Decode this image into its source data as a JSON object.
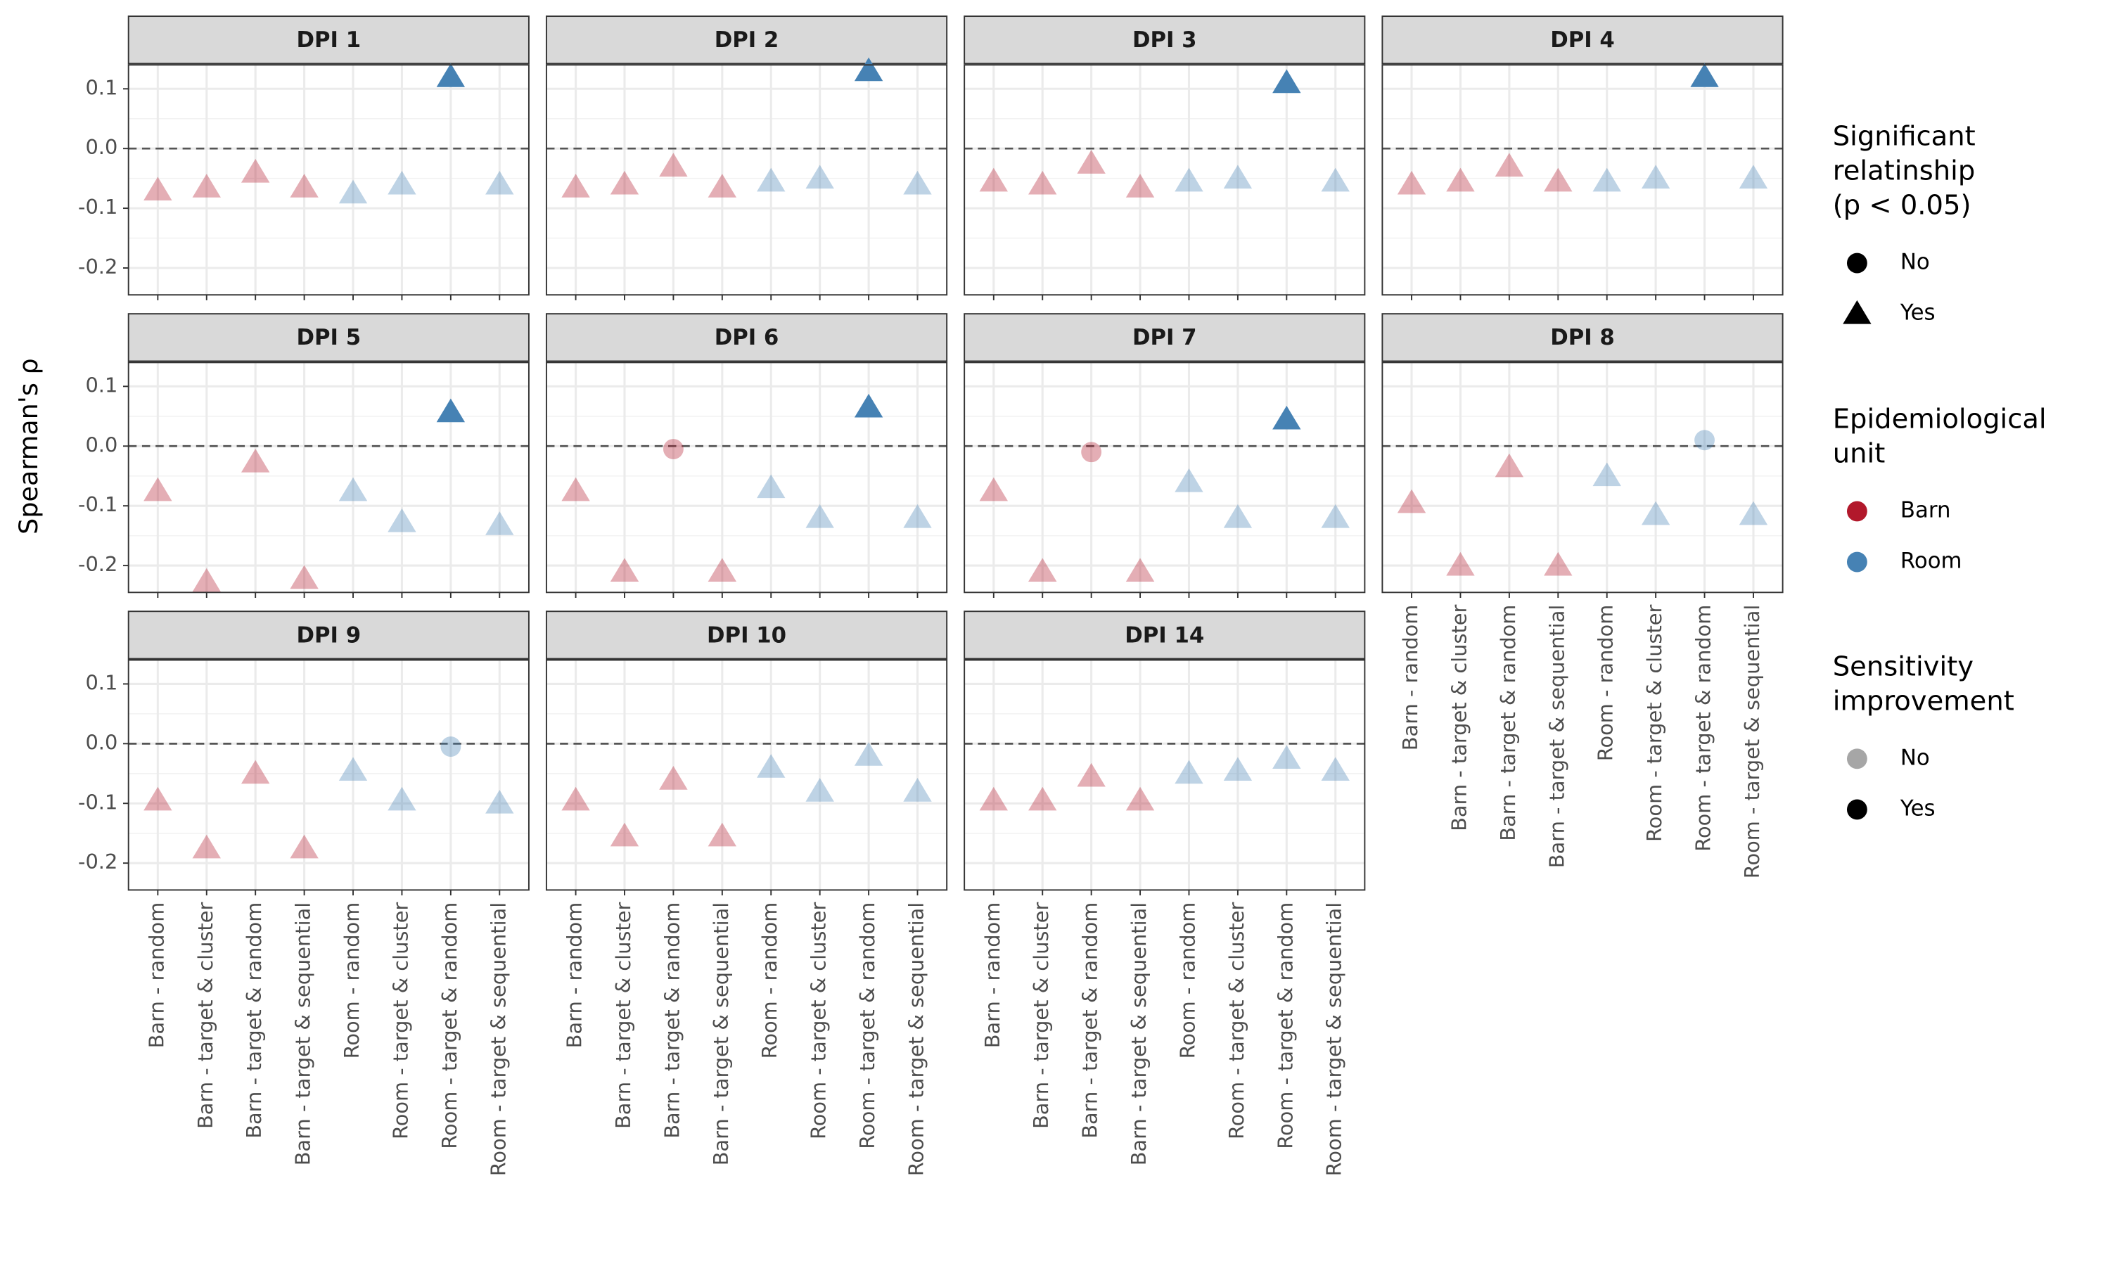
{
  "chart_data": {
    "type": "scatter",
    "y_label": "Spearman's ρ",
    "categories": [
      "Barn - random",
      "Barn - target & cluster",
      "Barn - target & random",
      "Barn - target & sequential",
      "Room - random",
      "Room - target & cluster",
      "Room - target & random",
      "Room - target & sequential"
    ],
    "units": [
      "Barn",
      "Barn",
      "Barn",
      "Barn",
      "Room",
      "Room",
      "Room",
      "Room"
    ],
    "ylim": [
      -0.245,
      0.14
    ],
    "yticks": [
      0.1,
      {
        "value": 0,
        "label": "0.0"
      },
      -0.1,
      -0.2
    ],
    "minor_yticks": [
      0.05,
      -0.05,
      -0.15
    ],
    "reference_line": 0,
    "grid": true,
    "shape_map": {
      "No": "circle",
      "Yes": "triangle"
    },
    "color_map": {
      "Barn": "#b2182b",
      "Room": "#4682b4"
    },
    "alpha_map": {
      "No": 0.35,
      "Yes": 1
    },
    "facets": [
      {
        "title": "DPI 1",
        "values": [
          -0.07,
          -0.065,
          -0.04,
          -0.065,
          -0.075,
          -0.06,
          0.12,
          -0.06
        ],
        "significant": [
          "Yes",
          "Yes",
          "Yes",
          "Yes",
          "Yes",
          "Yes",
          "Yes",
          "Yes"
        ],
        "improvement": [
          "No",
          "No",
          "No",
          "No",
          "No",
          "No",
          "Yes",
          "No"
        ]
      },
      {
        "title": "DPI 2",
        "values": [
          -0.065,
          -0.06,
          -0.03,
          -0.065,
          -0.055,
          -0.05,
          0.13,
          -0.06
        ],
        "significant": [
          "Yes",
          "Yes",
          "Yes",
          "Yes",
          "Yes",
          "Yes",
          "Yes",
          "Yes"
        ],
        "improvement": [
          "No",
          "No",
          "No",
          "No",
          "No",
          "No",
          "Yes",
          "No"
        ]
      },
      {
        "title": "DPI 3",
        "values": [
          -0.055,
          -0.06,
          -0.025,
          -0.065,
          -0.055,
          -0.05,
          0.11,
          -0.055
        ],
        "significant": [
          "Yes",
          "Yes",
          "Yes",
          "Yes",
          "Yes",
          "Yes",
          "Yes",
          "Yes"
        ],
        "improvement": [
          "No",
          "No",
          "No",
          "No",
          "No",
          "No",
          "Yes",
          "No"
        ]
      },
      {
        "title": "DPI 4",
        "values": [
          -0.06,
          -0.055,
          -0.03,
          -0.055,
          -0.055,
          -0.05,
          0.12,
          -0.05
        ],
        "significant": [
          "Yes",
          "Yes",
          "Yes",
          "Yes",
          "Yes",
          "Yes",
          "Yes",
          "Yes"
        ],
        "improvement": [
          "No",
          "No",
          "No",
          "No",
          "No",
          "No",
          "Yes",
          "No"
        ]
      },
      {
        "title": "DPI 5",
        "values": [
          -0.075,
          -0.227,
          -0.027,
          -0.222,
          -0.075,
          -0.127,
          0.057,
          -0.132
        ],
        "significant": [
          "Yes",
          "Yes",
          "Yes",
          "Yes",
          "Yes",
          "Yes",
          "Yes",
          "Yes"
        ],
        "improvement": [
          "No",
          "No",
          "No",
          "No",
          "No",
          "No",
          "Yes",
          "No"
        ]
      },
      {
        "title": "DPI 6",
        "values": [
          -0.075,
          -0.21,
          -0.005,
          -0.21,
          -0.07,
          -0.12,
          0.065,
          -0.12
        ],
        "significant": [
          "Yes",
          "Yes",
          "No",
          "Yes",
          "Yes",
          "Yes",
          "Yes",
          "Yes"
        ],
        "improvement": [
          "No",
          "No",
          "No",
          "No",
          "No",
          "No",
          "Yes",
          "No"
        ]
      },
      {
        "title": "DPI 7",
        "values": [
          -0.075,
          -0.21,
          -0.01,
          -0.21,
          -0.06,
          -0.12,
          0.045,
          -0.12
        ],
        "significant": [
          "Yes",
          "Yes",
          "No",
          "Yes",
          "Yes",
          "Yes",
          "Yes",
          "Yes"
        ],
        "improvement": [
          "No",
          "No",
          "No",
          "No",
          "No",
          "No",
          "Yes",
          "No"
        ]
      },
      {
        "title": "DPI 8",
        "values": [
          -0.095,
          -0.2,
          -0.035,
          -0.2,
          -0.05,
          -0.115,
          0.01,
          -0.115
        ],
        "significant": [
          "Yes",
          "Yes",
          "Yes",
          "Yes",
          "Yes",
          "Yes",
          "No",
          "Yes"
        ],
        "improvement": [
          "No",
          "No",
          "No",
          "No",
          "No",
          "No",
          "No",
          "No"
        ]
      },
      {
        "title": "DPI 9",
        "values": [
          -0.095,
          -0.175,
          -0.05,
          -0.175,
          -0.045,
          -0.095,
          -0.005,
          -0.1
        ],
        "significant": [
          "Yes",
          "Yes",
          "Yes",
          "Yes",
          "Yes",
          "Yes",
          "No",
          "Yes"
        ],
        "improvement": [
          "No",
          "No",
          "No",
          "No",
          "No",
          "No",
          "No",
          "No"
        ]
      },
      {
        "title": "DPI 10",
        "values": [
          -0.095,
          -0.155,
          -0.06,
          -0.155,
          -0.04,
          -0.08,
          -0.02,
          -0.08
        ],
        "significant": [
          "Yes",
          "Yes",
          "Yes",
          "Yes",
          "Yes",
          "Yes",
          "Yes",
          "Yes"
        ],
        "improvement": [
          "No",
          "No",
          "No",
          "No",
          "No",
          "No",
          "No",
          "No"
        ]
      },
      {
        "title": "DPI 14",
        "values": [
          -0.095,
          -0.095,
          -0.055,
          -0.095,
          -0.05,
          -0.045,
          -0.025,
          -0.045
        ],
        "significant": [
          "Yes",
          "Yes",
          "Yes",
          "Yes",
          "Yes",
          "Yes",
          "Yes",
          "Yes"
        ],
        "improvement": [
          "No",
          "No",
          "No",
          "No",
          "No",
          "No",
          "No",
          "No"
        ]
      }
    ],
    "legends": [
      {
        "title_lines": [
          "Significant",
          "relatinship",
          "(p < 0.05)"
        ],
        "kind": "shape",
        "entries": [
          "No",
          "Yes"
        ]
      },
      {
        "title_lines": [
          "Epidemiological",
          "unit"
        ],
        "kind": "color",
        "entries": [
          "Barn",
          "Room"
        ]
      },
      {
        "title_lines": [
          "Sensitivity",
          "improvement"
        ],
        "kind": "alpha",
        "entries": [
          "No",
          "Yes"
        ]
      }
    ]
  }
}
